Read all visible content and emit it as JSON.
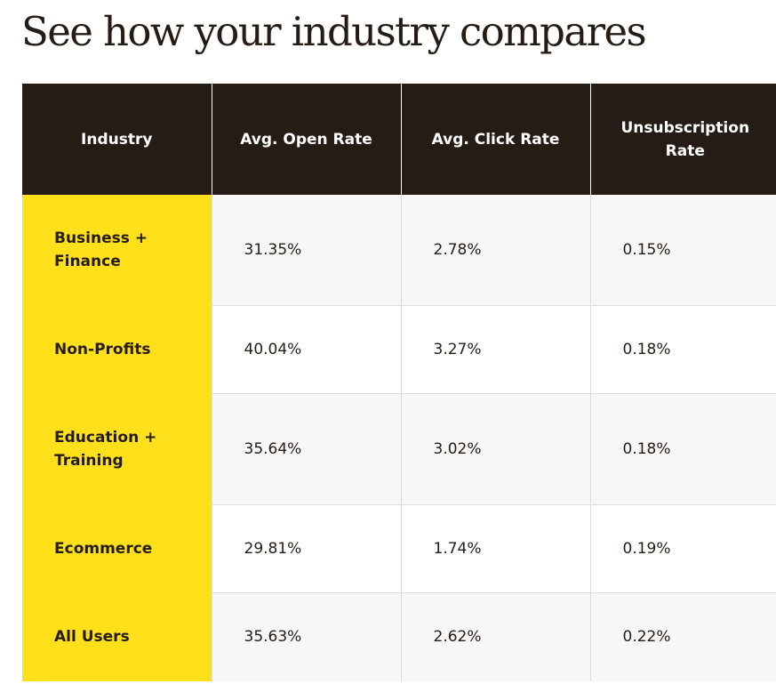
{
  "page": {
    "title": "See how your industry compares"
  },
  "table": {
    "headers": [
      "Industry",
      "Avg. Open Rate",
      "Avg. Click Rate",
      "Unsubscription Rate"
    ],
    "rows": [
      {
        "industry": "Business + Finance",
        "open_rate": "31.35%",
        "click_rate": "2.78%",
        "unsub_rate": "0.15%"
      },
      {
        "industry": "Non-Profits",
        "open_rate": "40.04%",
        "click_rate": "3.27%",
        "unsub_rate": "0.18%"
      },
      {
        "industry": "Education + Training",
        "open_rate": "35.64%",
        "click_rate": "3.02%",
        "unsub_rate": "0.18%"
      },
      {
        "industry": "Ecommerce",
        "open_rate": "29.81%",
        "click_rate": "1.74%",
        "unsub_rate": "0.19%"
      },
      {
        "industry": "All Users",
        "open_rate": "35.63%",
        "click_rate": "2.62%",
        "unsub_rate": "0.22%"
      }
    ]
  },
  "colors": {
    "header_background": "#241c15",
    "header_text": "#ffffff",
    "industry_highlight": "#ffe01b",
    "row_shade": "#f7f7f7",
    "row_plain": "#ffffff",
    "text": "#241c15"
  }
}
